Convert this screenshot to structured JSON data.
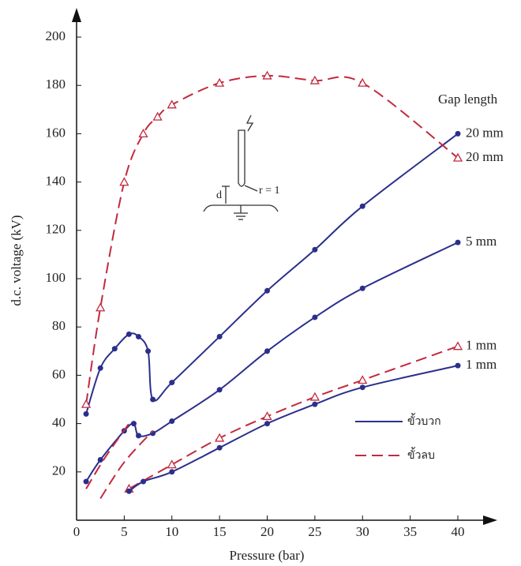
{
  "chart_data": {
    "type": "line",
    "xlabel": "Pressure (bar)",
    "ylabel": "d.c. voltage (kV)",
    "xlim": [
      0,
      40
    ],
    "ylim": [
      0,
      200
    ],
    "xticks": [
      0,
      5,
      10,
      15,
      20,
      25,
      30,
      35,
      40
    ],
    "yticks": [
      20,
      40,
      60,
      80,
      100,
      120,
      140,
      160,
      180,
      200
    ],
    "series_header": "Gap length",
    "annotations": [
      "d",
      "r = 1"
    ],
    "legend": [
      {
        "label": "ขั้วบวก",
        "style": "solid",
        "color": "#2b2f8c"
      },
      {
        "label": "ขั้วลบ",
        "style": "dashed",
        "color": "#c22a3e"
      }
    ],
    "series": [
      {
        "name": "20 mm",
        "color": "#2b2f8c",
        "style": "solid",
        "marker": "circle",
        "x": [
          1,
          2.5,
          4,
          5.5,
          6.5,
          7.5,
          8,
          10,
          15,
          20,
          25,
          30,
          40
        ],
        "values": [
          44,
          63,
          71,
          77,
          76,
          70,
          50,
          57,
          76,
          95,
          112,
          130,
          160
        ]
      },
      {
        "name": "20 mm",
        "color": "#c22a3e",
        "style": "dashed",
        "marker": "triangle",
        "x": [
          1,
          2.5,
          5,
          7,
          8.5,
          10,
          15,
          20,
          25,
          30,
          40
        ],
        "values": [
          48,
          88,
          140,
          160,
          167,
          172,
          181,
          184,
          182,
          181,
          150
        ]
      },
      {
        "name": "5 mm",
        "color": "#2b2f8c",
        "style": "solid",
        "marker": "circle",
        "x": [
          1,
          2.5,
          5,
          6,
          6.5,
          8,
          10,
          15,
          20,
          25,
          30,
          40
        ],
        "values": [
          16,
          25,
          37,
          40,
          35,
          36,
          41,
          54,
          70,
          84,
          96,
          115
        ]
      },
      {
        "color": "#c22a3e",
        "style": "dashed",
        "marker": "none",
        "x": [
          1,
          3,
          5.5
        ],
        "values": [
          13,
          26,
          40
        ]
      },
      {
        "color": "#c22a3e",
        "style": "dashed",
        "marker": "none",
        "x": [
          2.5,
          5,
          8
        ],
        "values": [
          9,
          24,
          37
        ]
      },
      {
        "name": "1 mm",
        "color": "#c22a3e",
        "style": "dashed",
        "marker": "triangle",
        "x": [
          5.5,
          10,
          15,
          20,
          25,
          30,
          40
        ],
        "values": [
          13,
          23,
          34,
          43,
          51,
          58,
          72
        ]
      },
      {
        "name": "1 mm",
        "color": "#2b2f8c",
        "style": "solid",
        "marker": "circle",
        "x": [
          5.5,
          7,
          10,
          15,
          20,
          25,
          30,
          40
        ],
        "values": [
          12,
          16,
          20,
          30,
          40,
          48,
          55,
          64
        ]
      }
    ]
  }
}
